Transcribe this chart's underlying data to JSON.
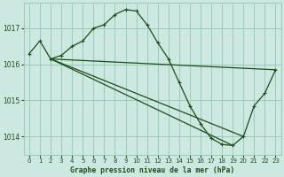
{
  "title": "Graphe pression niveau de la mer (hPa)",
  "bg_color": "#cce8e0",
  "grid_color": "#99ccbb",
  "line_color": "#1a4d1a",
  "ylim": [
    1013.5,
    1017.7
  ],
  "xlim": [
    -0.5,
    23.5
  ],
  "yticks": [
    1014,
    1015,
    1016,
    1017
  ],
  "xticks": [
    0,
    1,
    2,
    3,
    4,
    5,
    6,
    7,
    8,
    9,
    10,
    11,
    12,
    13,
    14,
    15,
    16,
    17,
    18,
    19,
    20,
    21,
    22,
    23
  ],
  "line_main": {
    "x": [
      0,
      1,
      2,
      3,
      4,
      5,
      6,
      7,
      8,
      9,
      10,
      11,
      12,
      13,
      14,
      15,
      16,
      17,
      18,
      19,
      20,
      21,
      22,
      23
    ],
    "y": [
      1016.3,
      1016.65,
      1016.15,
      1016.25,
      1016.5,
      1016.65,
      1017.0,
      1017.1,
      1017.38,
      1017.52,
      1017.48,
      1017.1,
      1016.6,
      1016.15,
      1015.5,
      1014.85,
      1014.35,
      1013.95,
      1013.78,
      1013.75,
      1014.0,
      1014.85,
      1015.2,
      1015.85
    ]
  },
  "line_flat": {
    "x": [
      2,
      23
    ],
    "y": [
      1016.15,
      1015.85
    ]
  },
  "line_diag1": {
    "x": [
      2,
      19
    ],
    "y": [
      1016.15,
      1013.75
    ]
  },
  "line_diag2": {
    "x": [
      2,
      20
    ],
    "y": [
      1016.15,
      1014.0
    ]
  }
}
